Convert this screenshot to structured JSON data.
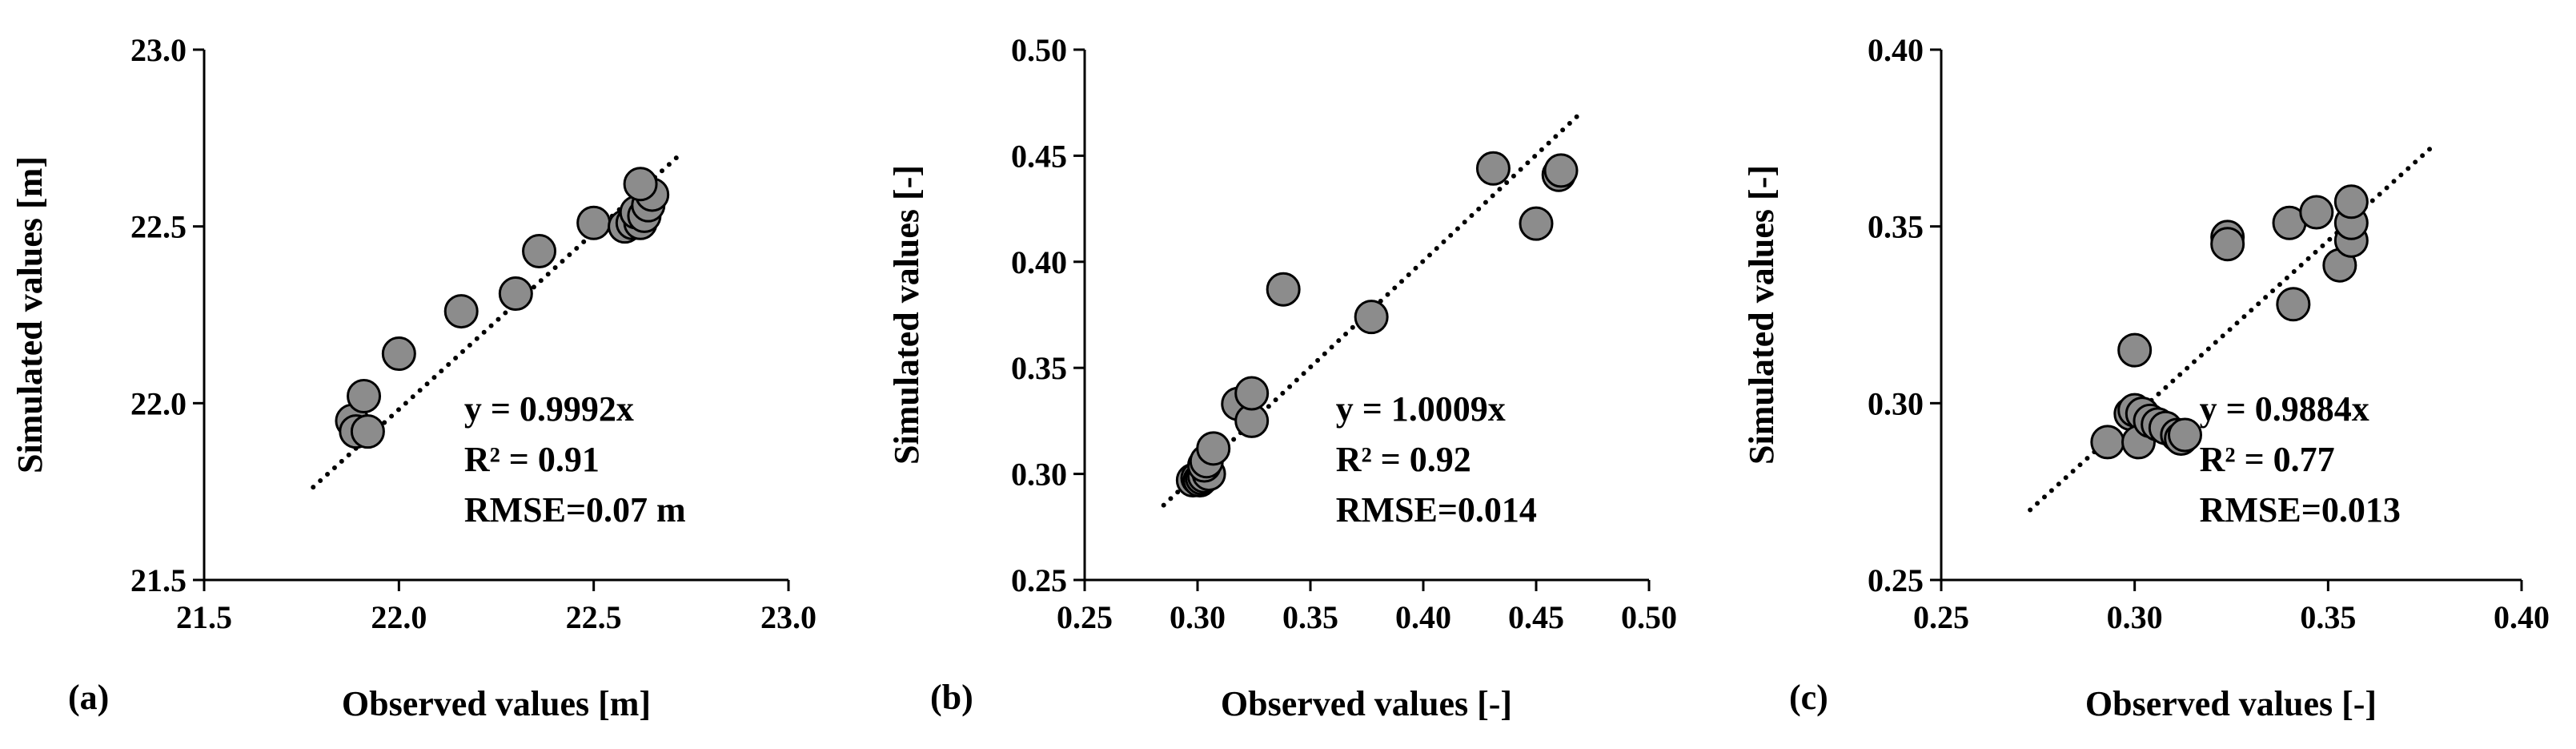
{
  "chart_data": [
    {
      "panel": "(a)",
      "type": "scatter",
      "xlabel": "Observed values [m]",
      "ylabel": "Simulated values [m]",
      "xlim": [
        21.5,
        23.0
      ],
      "ylim": [
        21.5,
        23.0
      ],
      "xticks": [
        "21.5",
        "22.0",
        "22.5",
        "23.0"
      ],
      "yticks": [
        "21.5",
        "22.0",
        "22.5",
        "23.0"
      ],
      "trendline": {
        "slope": 0.9992,
        "x_range": [
          21.78,
          22.73
        ]
      },
      "annotations": [
        "y = 0.9992x",
        "R² = 0.91",
        "RMSE=0.07 m"
      ],
      "points": [
        {
          "x": 21.88,
          "y": 21.95
        },
        {
          "x": 21.89,
          "y": 21.92
        },
        {
          "x": 21.92,
          "y": 21.92
        },
        {
          "x": 21.91,
          "y": 22.02
        },
        {
          "x": 22.0,
          "y": 22.14
        },
        {
          "x": 22.16,
          "y": 22.26
        },
        {
          "x": 22.3,
          "y": 22.31
        },
        {
          "x": 22.36,
          "y": 22.43
        },
        {
          "x": 22.5,
          "y": 22.51
        },
        {
          "x": 22.58,
          "y": 22.5
        },
        {
          "x": 22.6,
          "y": 22.51
        },
        {
          "x": 22.62,
          "y": 22.51
        },
        {
          "x": 22.61,
          "y": 22.54
        },
        {
          "x": 22.63,
          "y": 22.53
        },
        {
          "x": 22.64,
          "y": 22.56
        },
        {
          "x": 22.65,
          "y": 22.59
        },
        {
          "x": 22.62,
          "y": 22.62
        }
      ]
    },
    {
      "panel": "(b)",
      "type": "scatter",
      "xlabel": "Observed values [-]",
      "ylabel": "Simulated values [-]",
      "xlim": [
        0.25,
        0.5
      ],
      "ylim": [
        0.25,
        0.5
      ],
      "xticks": [
        "0.25",
        "0.30",
        "0.35",
        "0.40",
        "0.45",
        "0.50"
      ],
      "yticks": [
        "0.25",
        "0.30",
        "0.35",
        "0.40",
        "0.45",
        "0.50"
      ],
      "trendline": {
        "slope": 1.0009,
        "x_range": [
          0.285,
          0.468
        ]
      },
      "annotations": [
        "y = 1.0009x",
        "R² = 0.92",
        "RMSE=0.014"
      ],
      "points": [
        {
          "x": 0.298,
          "y": 0.297
        },
        {
          "x": 0.3,
          "y": 0.298
        },
        {
          "x": 0.301,
          "y": 0.297
        },
        {
          "x": 0.302,
          "y": 0.298
        },
        {
          "x": 0.303,
          "y": 0.299
        },
        {
          "x": 0.305,
          "y": 0.3
        },
        {
          "x": 0.303,
          "y": 0.304
        },
        {
          "x": 0.304,
          "y": 0.306
        },
        {
          "x": 0.307,
          "y": 0.312
        },
        {
          "x": 0.318,
          "y": 0.333
        },
        {
          "x": 0.324,
          "y": 0.325
        },
        {
          "x": 0.324,
          "y": 0.338
        },
        {
          "x": 0.338,
          "y": 0.387
        },
        {
          "x": 0.377,
          "y": 0.374
        },
        {
          "x": 0.431,
          "y": 0.444
        },
        {
          "x": 0.45,
          "y": 0.418
        },
        {
          "x": 0.46,
          "y": 0.441
        },
        {
          "x": 0.461,
          "y": 0.443
        }
      ]
    },
    {
      "panel": "(c)",
      "type": "scatter",
      "xlabel": "Observed values [-]",
      "ylabel": "Simulated values [-]",
      "xlim": [
        0.25,
        0.4
      ],
      "ylim": [
        0.25,
        0.4
      ],
      "xticks": [
        "0.25",
        "0.30",
        "0.35",
        "0.40"
      ],
      "yticks": [
        "0.25",
        "0.30",
        "0.35",
        "0.40"
      ],
      "trendline": {
        "slope": 0.9884,
        "x_range": [
          0.273,
          0.377
        ]
      },
      "annotations": [
        "y = 0.9884x",
        "R² = 0.77",
        "RMSE=0.013"
      ],
      "points": [
        {
          "x": 0.293,
          "y": 0.289
        },
        {
          "x": 0.299,
          "y": 0.297
        },
        {
          "x": 0.3,
          "y": 0.298
        },
        {
          "x": 0.302,
          "y": 0.297
        },
        {
          "x": 0.3,
          "y": 0.315
        },
        {
          "x": 0.301,
          "y": 0.289
        },
        {
          "x": 0.304,
          "y": 0.295
        },
        {
          "x": 0.306,
          "y": 0.294
        },
        {
          "x": 0.308,
          "y": 0.293
        },
        {
          "x": 0.311,
          "y": 0.291
        },
        {
          "x": 0.312,
          "y": 0.29
        },
        {
          "x": 0.313,
          "y": 0.291
        },
        {
          "x": 0.324,
          "y": 0.347
        },
        {
          "x": 0.324,
          "y": 0.345
        },
        {
          "x": 0.34,
          "y": 0.351
        },
        {
          "x": 0.341,
          "y": 0.328
        },
        {
          "x": 0.347,
          "y": 0.354
        },
        {
          "x": 0.353,
          "y": 0.339
        },
        {
          "x": 0.356,
          "y": 0.346
        },
        {
          "x": 0.356,
          "y": 0.351
        },
        {
          "x": 0.356,
          "y": 0.357
        }
      ]
    }
  ]
}
